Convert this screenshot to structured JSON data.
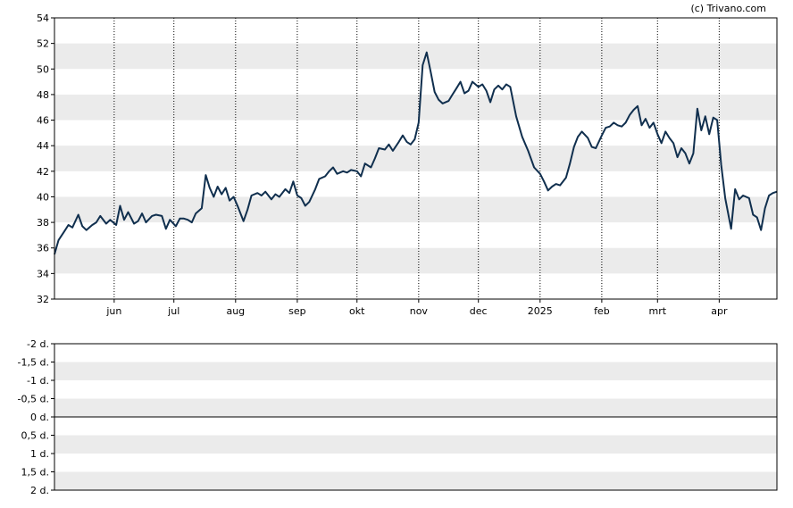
{
  "copyright": "(c) Trivano.com",
  "colors": {
    "line": "#102f4e",
    "band": "#ebebeb",
    "frame": "#000000",
    "grid": "#000000",
    "zero_line": "#000000"
  },
  "chart_data": [
    {
      "type": "line",
      "title": "",
      "xlabel": "",
      "ylabel": "",
      "ylim": [
        32,
        54
      ],
      "yticks": [
        32,
        34,
        36,
        38,
        40,
        42,
        44,
        46,
        48,
        50,
        52,
        54
      ],
      "grid": "vertical dotted lines at month starts; alternating grey horizontal bands",
      "x_tick_labels": [
        "jun",
        "jul",
        "aug",
        "sep",
        "okt",
        "nov",
        "dec",
        "2025",
        "feb",
        "mrt",
        "apr"
      ],
      "x_tick_dates": [
        "2024-06-01",
        "2024-07-01",
        "2024-08-01",
        "2024-09-01",
        "2024-10-01",
        "2024-11-01",
        "2024-12-01",
        "2025-01-01",
        "2025-02-01",
        "2025-03-01",
        "2025-04-01"
      ],
      "xlim": [
        "2024-05-02",
        "2025-04-30"
      ],
      "series": [
        {
          "points": [
            [
              "2024-05-02",
              35.5
            ],
            [
              "2024-05-04",
              36.6
            ],
            [
              "2024-05-07",
              37.3
            ],
            [
              "2024-05-09",
              37.8
            ],
            [
              "2024-05-11",
              37.6
            ],
            [
              "2024-05-14",
              38.6
            ],
            [
              "2024-05-16",
              37.7
            ],
            [
              "2024-05-18",
              37.4
            ],
            [
              "2024-05-21",
              37.8
            ],
            [
              "2024-05-23",
              38.0
            ],
            [
              "2024-05-25",
              38.5
            ],
            [
              "2024-05-28",
              37.9
            ],
            [
              "2024-05-30",
              38.2
            ],
            [
              "2024-06-02",
              37.8
            ],
            [
              "2024-06-04",
              39.3
            ],
            [
              "2024-06-06",
              38.2
            ],
            [
              "2024-06-08",
              38.8
            ],
            [
              "2024-06-11",
              37.9
            ],
            [
              "2024-06-13",
              38.1
            ],
            [
              "2024-06-15",
              38.7
            ],
            [
              "2024-06-17",
              38.0
            ],
            [
              "2024-06-20",
              38.5
            ],
            [
              "2024-06-22",
              38.6
            ],
            [
              "2024-06-25",
              38.5
            ],
            [
              "2024-06-27",
              37.5
            ],
            [
              "2024-06-29",
              38.2
            ],
            [
              "2024-07-02",
              37.7
            ],
            [
              "2024-07-04",
              38.3
            ],
            [
              "2024-07-06",
              38.3
            ],
            [
              "2024-07-08",
              38.2
            ],
            [
              "2024-07-10",
              38.0
            ],
            [
              "2024-07-12",
              38.7
            ],
            [
              "2024-07-15",
              39.1
            ],
            [
              "2024-07-17",
              41.7
            ],
            [
              "2024-07-19",
              40.7
            ],
            [
              "2024-07-21",
              40.0
            ],
            [
              "2024-07-23",
              40.8
            ],
            [
              "2024-07-25",
              40.2
            ],
            [
              "2024-07-27",
              40.7
            ],
            [
              "2024-07-29",
              39.7
            ],
            [
              "2024-07-31",
              40.0
            ],
            [
              "2024-08-02",
              39.3
            ],
            [
              "2024-08-05",
              38.1
            ],
            [
              "2024-08-07",
              39.0
            ],
            [
              "2024-08-09",
              40.1
            ],
            [
              "2024-08-12",
              40.3
            ],
            [
              "2024-08-14",
              40.1
            ],
            [
              "2024-08-16",
              40.4
            ],
            [
              "2024-08-19",
              39.8
            ],
            [
              "2024-08-21",
              40.2
            ],
            [
              "2024-08-23",
              40.0
            ],
            [
              "2024-08-26",
              40.6
            ],
            [
              "2024-08-28",
              40.3
            ],
            [
              "2024-08-30",
              41.2
            ],
            [
              "2024-09-01",
              40.1
            ],
            [
              "2024-09-03",
              39.9
            ],
            [
              "2024-09-05",
              39.3
            ],
            [
              "2024-09-07",
              39.6
            ],
            [
              "2024-09-10",
              40.6
            ],
            [
              "2024-09-12",
              41.4
            ],
            [
              "2024-09-15",
              41.6
            ],
            [
              "2024-09-17",
              42.0
            ],
            [
              "2024-09-19",
              42.3
            ],
            [
              "2024-09-21",
              41.8
            ],
            [
              "2024-09-24",
              42.0
            ],
            [
              "2024-09-26",
              41.9
            ],
            [
              "2024-09-28",
              42.1
            ],
            [
              "2024-10-01",
              42.0
            ],
            [
              "2024-10-03",
              41.6
            ],
            [
              "2024-10-05",
              42.6
            ],
            [
              "2024-10-08",
              42.3
            ],
            [
              "2024-10-10",
              43.0
            ],
            [
              "2024-10-12",
              43.8
            ],
            [
              "2024-10-15",
              43.7
            ],
            [
              "2024-10-17",
              44.1
            ],
            [
              "2024-10-19",
              43.6
            ],
            [
              "2024-10-22",
              44.3
            ],
            [
              "2024-10-24",
              44.8
            ],
            [
              "2024-10-26",
              44.3
            ],
            [
              "2024-10-28",
              44.1
            ],
            [
              "2024-10-30",
              44.5
            ],
            [
              "2024-11-01",
              45.8
            ],
            [
              "2024-11-03",
              50.3
            ],
            [
              "2024-11-05",
              51.3
            ],
            [
              "2024-11-07",
              49.8
            ],
            [
              "2024-11-09",
              48.2
            ],
            [
              "2024-11-11",
              47.6
            ],
            [
              "2024-11-13",
              47.3
            ],
            [
              "2024-11-16",
              47.5
            ],
            [
              "2024-11-18",
              48.0
            ],
            [
              "2024-11-20",
              48.5
            ],
            [
              "2024-11-22",
              49.0
            ],
            [
              "2024-11-24",
              48.1
            ],
            [
              "2024-11-26",
              48.3
            ],
            [
              "2024-11-28",
              49.0
            ],
            [
              "2024-12-01",
              48.6
            ],
            [
              "2024-12-03",
              48.8
            ],
            [
              "2024-12-05",
              48.3
            ],
            [
              "2024-12-07",
              47.4
            ],
            [
              "2024-12-09",
              48.4
            ],
            [
              "2024-12-11",
              48.7
            ],
            [
              "2024-12-13",
              48.4
            ],
            [
              "2024-12-15",
              48.8
            ],
            [
              "2024-12-17",
              48.6
            ],
            [
              "2024-12-20",
              46.3
            ],
            [
              "2024-12-23",
              44.7
            ],
            [
              "2024-12-26",
              43.6
            ],
            [
              "2024-12-29",
              42.3
            ],
            [
              "2025-01-01",
              41.8
            ],
            [
              "2025-01-03",
              41.2
            ],
            [
              "2025-01-05",
              40.5
            ],
            [
              "2025-01-07",
              40.8
            ],
            [
              "2025-01-09",
              41.0
            ],
            [
              "2025-01-11",
              40.9
            ],
            [
              "2025-01-14",
              41.5
            ],
            [
              "2025-01-16",
              42.6
            ],
            [
              "2025-01-18",
              43.9
            ],
            [
              "2025-01-20",
              44.7
            ],
            [
              "2025-01-22",
              45.1
            ],
            [
              "2025-01-25",
              44.6
            ],
            [
              "2025-01-27",
              43.9
            ],
            [
              "2025-01-29",
              43.8
            ],
            [
              "2025-02-01",
              44.8
            ],
            [
              "2025-02-03",
              45.4
            ],
            [
              "2025-02-05",
              45.5
            ],
            [
              "2025-02-07",
              45.8
            ],
            [
              "2025-02-09",
              45.6
            ],
            [
              "2025-02-11",
              45.5
            ],
            [
              "2025-02-13",
              45.8
            ],
            [
              "2025-02-15",
              46.4
            ],
            [
              "2025-02-17",
              46.8
            ],
            [
              "2025-02-19",
              47.1
            ],
            [
              "2025-02-21",
              45.6
            ],
            [
              "2025-02-23",
              46.1
            ],
            [
              "2025-02-25",
              45.4
            ],
            [
              "2025-02-27",
              45.8
            ],
            [
              "2025-03-01",
              44.9
            ],
            [
              "2025-03-03",
              44.2
            ],
            [
              "2025-03-05",
              45.1
            ],
            [
              "2025-03-07",
              44.6
            ],
            [
              "2025-03-09",
              44.2
            ],
            [
              "2025-03-11",
              43.1
            ],
            [
              "2025-03-13",
              43.8
            ],
            [
              "2025-03-15",
              43.4
            ],
            [
              "2025-03-17",
              42.6
            ],
            [
              "2025-03-19",
              43.4
            ],
            [
              "2025-03-21",
              46.9
            ],
            [
              "2025-03-23",
              45.2
            ],
            [
              "2025-03-25",
              46.3
            ],
            [
              "2025-03-27",
              44.9
            ],
            [
              "2025-03-29",
              46.2
            ],
            [
              "2025-03-31",
              46.0
            ],
            [
              "2025-04-02",
              42.5
            ],
            [
              "2025-04-04",
              39.9
            ],
            [
              "2025-04-07",
              37.5
            ],
            [
              "2025-04-09",
              40.6
            ],
            [
              "2025-04-11",
              39.8
            ],
            [
              "2025-04-13",
              40.1
            ],
            [
              "2025-04-16",
              39.9
            ],
            [
              "2025-04-18",
              38.6
            ],
            [
              "2025-04-20",
              38.4
            ],
            [
              "2025-04-22",
              37.4
            ],
            [
              "2025-04-24",
              39.1
            ],
            [
              "2025-04-26",
              40.1
            ],
            [
              "2025-04-28",
              40.3
            ],
            [
              "2025-04-30",
              40.4
            ]
          ]
        }
      ]
    },
    {
      "type": "line",
      "title": "",
      "xlabel": "",
      "ylabel": "",
      "ylim": [
        -2,
        2
      ],
      "yticks": [
        -2,
        -1.5,
        -1,
        -0.5,
        0,
        0.5,
        1,
        1.5,
        2
      ],
      "y_tick_labels": [
        "2 d.",
        "1,5 d.",
        "1 d.",
        "0,5 d.",
        "0 d.",
        "-0,5 d.",
        "-1 d.",
        "-1,5 d.",
        "-2 d."
      ],
      "grid": "alternating grey horizontal bands; solid line at 0",
      "series": []
    }
  ]
}
